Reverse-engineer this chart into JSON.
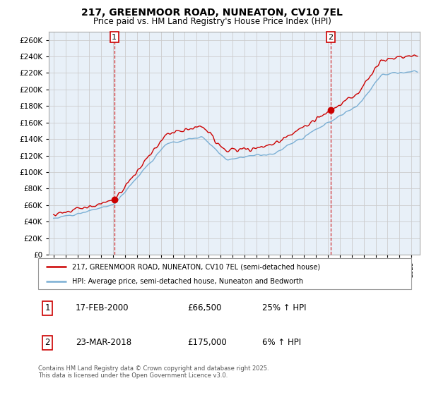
{
  "title": "217, GREENMOOR ROAD, NUNEATON, CV10 7EL",
  "subtitle": "Price paid vs. HM Land Registry's House Price Index (HPI)",
  "legend_line1": "217, GREENMOOR ROAD, NUNEATON, CV10 7EL (semi-detached house)",
  "legend_line2": "HPI: Average price, semi-detached house, Nuneaton and Bedworth",
  "annotation1_label": "1",
  "annotation1_date": "17-FEB-2000",
  "annotation1_price": "£66,500",
  "annotation1_hpi": "25% ↑ HPI",
  "annotation2_label": "2",
  "annotation2_date": "23-MAR-2018",
  "annotation2_price": "£175,000",
  "annotation2_hpi": "6% ↑ HPI",
  "footnote": "Contains HM Land Registry data © Crown copyright and database right 2025.\nThis data is licensed under the Open Government Licence v3.0.",
  "red_color": "#cc0000",
  "blue_color": "#7bafd4",
  "plot_bg_color": "#e8f0f8",
  "annotation_color": "#cc0000",
  "ylim": [
    0,
    270000
  ],
  "yticks": [
    0,
    20000,
    40000,
    60000,
    80000,
    100000,
    120000,
    140000,
    160000,
    180000,
    200000,
    220000,
    240000,
    260000
  ],
  "purchase1_year": 2000.08,
  "purchase1_price": 66500,
  "purchase2_year": 2018.22,
  "purchase2_price": 175000,
  "background_color": "#ffffff",
  "grid_color": "#cccccc"
}
